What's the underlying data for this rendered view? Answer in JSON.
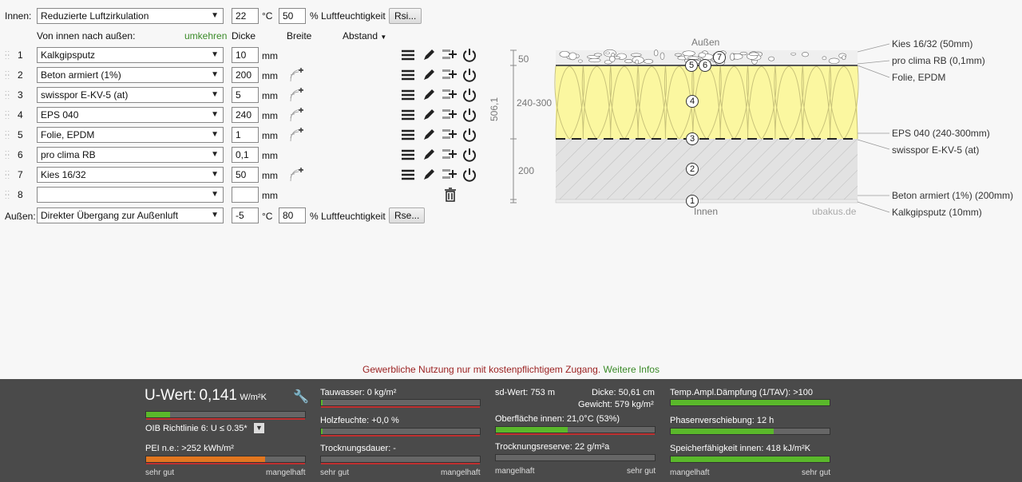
{
  "top": {
    "innen_label": "Innen:",
    "innen_climate": "Reduzierte Luftzirkulation",
    "innen_temp": "22",
    "temp_unit": "°C",
    "innen_humidity": "50",
    "humidity_label": "% Luftfeuchtigkeit",
    "rsi_button": "Rsi...",
    "aussen_label": "Außen:",
    "aussen_climate": "Direkter Übergang zur Außenluft",
    "aussen_temp": "-5",
    "aussen_humidity": "80",
    "rse_button": "Rse..."
  },
  "headers": {
    "direction": "Von innen nach außen:",
    "reverse": "umkehren",
    "thickness": "Dicke",
    "width": "Breite",
    "spacing": "Abstand"
  },
  "layers": [
    {
      "num": "1",
      "material": "Kalkgipsputz",
      "thickness": "10",
      "unit": "mm",
      "wood": false
    },
    {
      "num": "2",
      "material": "Beton armiert (1%)",
      "thickness": "200",
      "unit": "mm",
      "wood": true
    },
    {
      "num": "3",
      "material": "swisspor E-KV-5 (at)",
      "thickness": "5",
      "unit": "mm",
      "wood": true
    },
    {
      "num": "4",
      "material": "EPS 040",
      "thickness": "240",
      "unit": "mm",
      "wood": true
    },
    {
      "num": "5",
      "material": "Folie, EPDM",
      "thickness": "1",
      "unit": "mm",
      "wood": true
    },
    {
      "num": "6",
      "material": "pro clima RB",
      "thickness": "0,1",
      "unit": "mm",
      "wood": false
    },
    {
      "num": "7",
      "material": "Kies 16/32",
      "thickness": "50",
      "unit": "mm",
      "wood": true
    },
    {
      "num": "8",
      "material": "",
      "thickness": "",
      "unit": "mm",
      "wood": false
    }
  ],
  "diagram": {
    "top_label": "Außen",
    "bottom_label": "Innen",
    "watermark": "ubakus.de",
    "total": "506,1",
    "dim_50": "50",
    "dim_insul": "240-300",
    "dim_200": "200",
    "markers": [
      "1",
      "2",
      "3",
      "4",
      "5",
      "6",
      "7"
    ],
    "legend": [
      "Kies 16/32 (50mm)",
      "pro clima RB (0,1mm)",
      "Folie, EPDM",
      "EPS 040 (240-300mm)",
      "swisspor E-KV-5 (at)",
      "Beton armiert (1%) (200mm)",
      "Kalkgipsputz (10mm)"
    ]
  },
  "notice": {
    "text": "Gewerbliche Nutzung nur mit kostenpflichtigem Zugang.",
    "link": "Weitere Infos"
  },
  "results": {
    "uwert_label": "U-Wert:",
    "uwert_value": "0,141",
    "uwert_unit": "W/m²K",
    "oib": "OIB Richtlinie 6: U ≤ 0.35*",
    "pei": "PEI n.e.: >252 kWh/m²",
    "tauwasser": "Tauwasser: 0 kg/m²",
    "holzfeuchte": "Holzfeuchte: +0,0 %",
    "trocknungsdauer": "Trocknungsdauer: -",
    "sdwert": "sd-Wert: 753 m",
    "dicke": "Dicke: 50,61 cm",
    "gewicht": "Gewicht: 579 kg/m²",
    "oberflaeche": "Oberfläche innen: 21,0°C (53%)",
    "trocknungsreserve": "Trocknungsreserve: 22 g/m²a",
    "daempfung": "Temp.Ampl.Dämpfung (1/TAV): >100",
    "phasen": "Phasenverschiebung: 12 h",
    "speicher": "Speicherfähigkeit innen: 418 kJ/m²K",
    "scale_good": "sehr gut",
    "scale_bad": "mangelhaft",
    "uwert_fill": 0.15,
    "pei_fill": 0.75,
    "oberflaeche_fill": 0.45,
    "daempfung_fill": 1.0,
    "phasen_fill": 0.65,
    "speicher_fill": 1.0
  }
}
